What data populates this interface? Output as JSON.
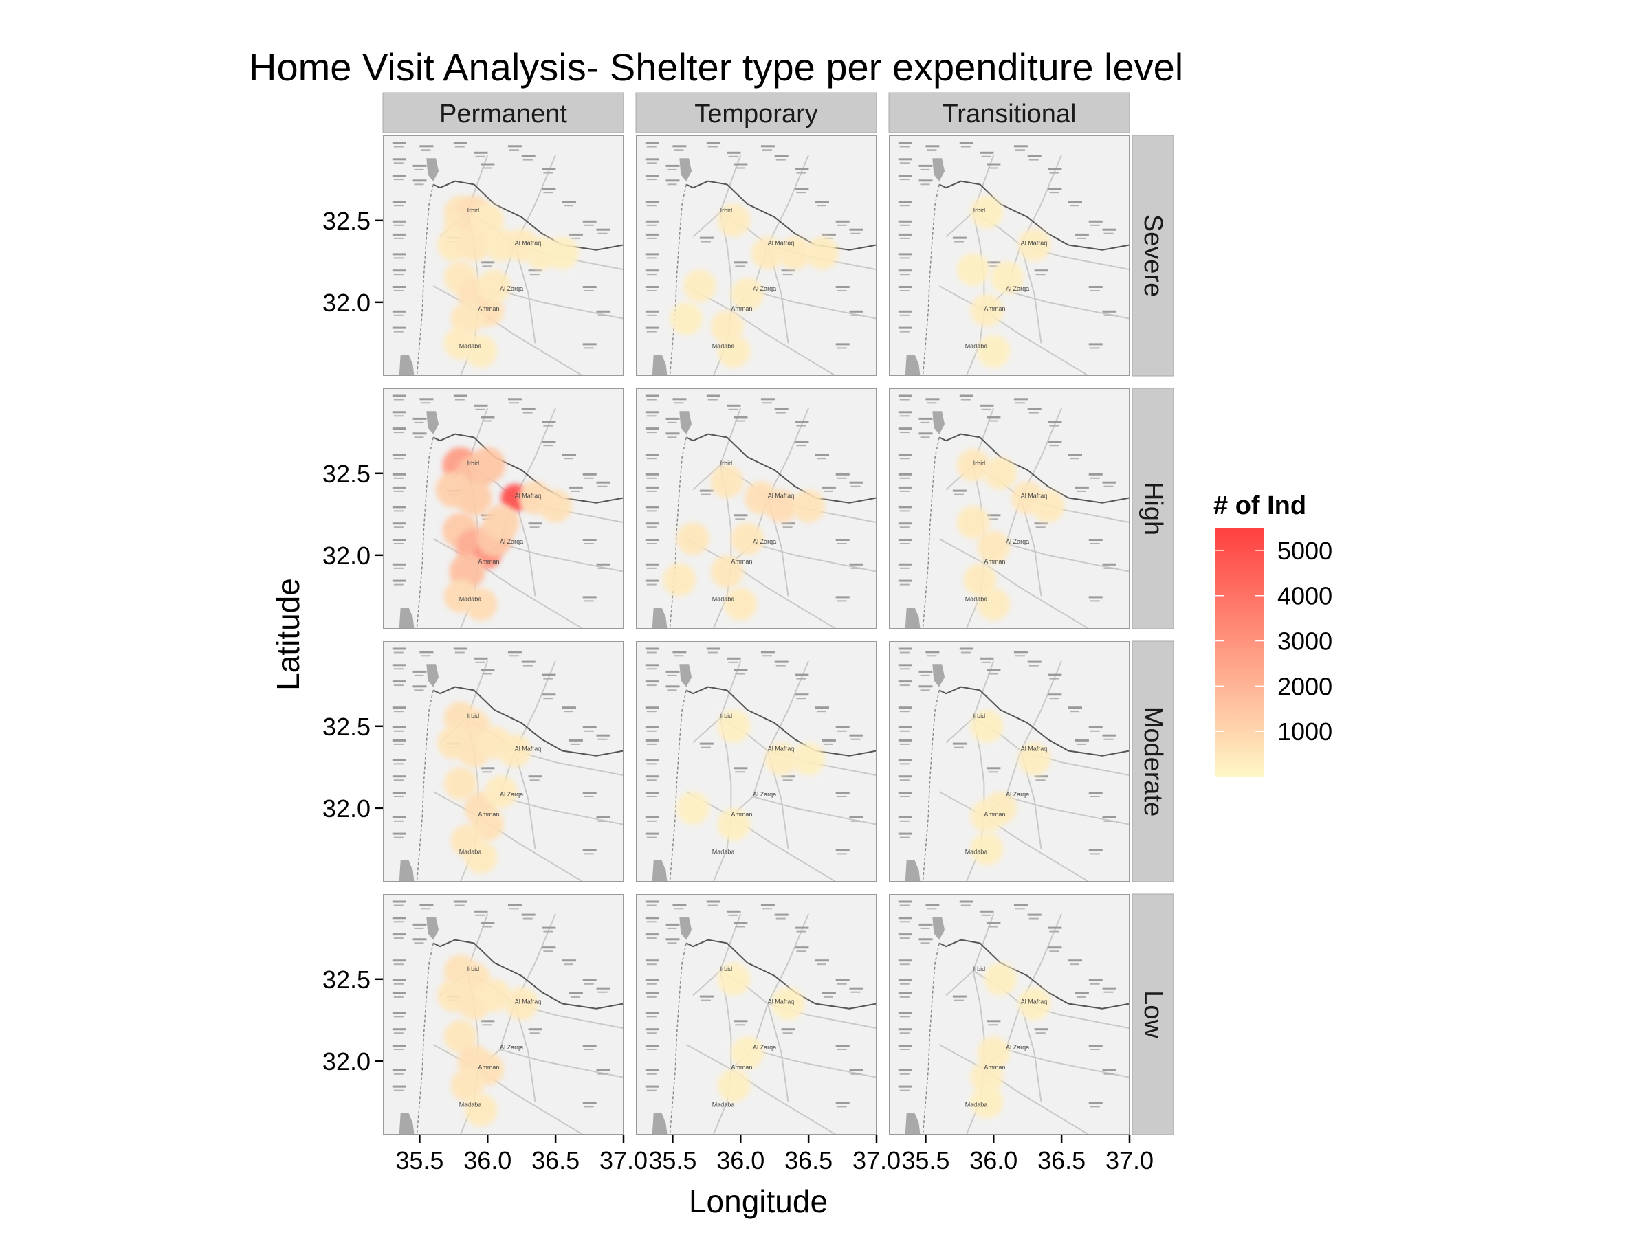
{
  "title": "Home Visit Analysis- Shelter type per expenditure level",
  "columns": [
    "Permanent",
    "Temporary",
    "Transitional"
  ],
  "rows": [
    "Severe",
    "High",
    "Moderate",
    "Low"
  ],
  "axes": {
    "xlabel": "Longitude",
    "ylabel": "Latitude",
    "xlim": [
      35.23,
      37.0
    ],
    "ylim": [
      31.55,
      33.02
    ],
    "x_ticks": [
      35.5,
      36.0,
      36.5,
      37.0
    ],
    "x_tick_labels": [
      "35.5",
      "36.0",
      "36.5",
      "37.0"
    ],
    "y_ticks": [
      32.0,
      32.5
    ],
    "y_tick_labels": [
      "32.0",
      "32.5"
    ]
  },
  "legend": {
    "title": "# of Ind",
    "placement": "right",
    "range": [
      0,
      5500
    ],
    "breaks": [
      1000,
      2000,
      3000,
      4000,
      5000
    ],
    "break_labels": [
      "1000",
      "2000",
      "3000",
      "4000",
      "5000"
    ],
    "color_low": "#fff7c6",
    "color_high": "#ff4040"
  },
  "map_labels": [
    {
      "text": "Amman",
      "lon": 35.93,
      "lat": 31.95
    },
    {
      "text": "Al Zarqa",
      "lon": 36.09,
      "lat": 32.07
    },
    {
      "text": "Al Mafraq",
      "lon": 36.2,
      "lat": 32.35
    },
    {
      "text": "Irbid",
      "lon": 35.85,
      "lat": 32.55
    },
    {
      "text": "Madaba",
      "lon": 35.79,
      "lat": 31.72
    }
  ],
  "colors": {
    "panel_bg": "#f1f1f1",
    "strip_bg": "#cbcbcb",
    "sea": "#a9a9a9",
    "border": "#555555",
    "road": "#c9c9c9"
  },
  "chart_data": {
    "type": "heatmap",
    "description_value": "density of individuals by location",
    "panels": [
      {
        "col": "Permanent",
        "row": "Severe",
        "cells": [
          {
            "lon": 35.8,
            "lat": 32.55,
            "value": 600
          },
          {
            "lon": 35.9,
            "lat": 32.55,
            "value": 800
          },
          {
            "lon": 35.8,
            "lat": 32.45,
            "value": 500
          },
          {
            "lon": 35.9,
            "lat": 32.45,
            "value": 700
          },
          {
            "lon": 35.75,
            "lat": 32.35,
            "value": 400
          },
          {
            "lon": 35.9,
            "lat": 32.35,
            "value": 500
          },
          {
            "lon": 36.0,
            "lat": 32.5,
            "value": 400
          },
          {
            "lon": 36.1,
            "lat": 32.35,
            "value": 350
          },
          {
            "lon": 36.25,
            "lat": 32.35,
            "value": 400
          },
          {
            "lon": 36.4,
            "lat": 32.3,
            "value": 300
          },
          {
            "lon": 36.55,
            "lat": 32.3,
            "value": 250
          },
          {
            "lon": 35.8,
            "lat": 32.15,
            "value": 450
          },
          {
            "lon": 35.9,
            "lat": 32.05,
            "value": 650
          },
          {
            "lon": 36.0,
            "lat": 31.95,
            "value": 700
          },
          {
            "lon": 35.85,
            "lat": 31.9,
            "value": 500
          },
          {
            "lon": 35.8,
            "lat": 31.75,
            "value": 350
          },
          {
            "lon": 35.95,
            "lat": 31.7,
            "value": 300
          },
          {
            "lon": 36.05,
            "lat": 32.1,
            "value": 400
          }
        ]
      },
      {
        "col": "Temporary",
        "row": "Severe",
        "cells": [
          {
            "lon": 35.7,
            "lat": 32.1,
            "value": 300
          },
          {
            "lon": 35.95,
            "lat": 32.5,
            "value": 350
          },
          {
            "lon": 36.2,
            "lat": 32.3,
            "value": 400
          },
          {
            "lon": 36.4,
            "lat": 32.3,
            "value": 400
          },
          {
            "lon": 36.6,
            "lat": 32.3,
            "value": 350
          },
          {
            "lon": 36.05,
            "lat": 32.05,
            "value": 300
          },
          {
            "lon": 35.9,
            "lat": 31.85,
            "value": 350
          },
          {
            "lon": 35.95,
            "lat": 31.7,
            "value": 300
          },
          {
            "lon": 35.6,
            "lat": 31.9,
            "value": 250
          }
        ]
      },
      {
        "col": "Transitional",
        "row": "Severe",
        "cells": [
          {
            "lon": 35.95,
            "lat": 32.55,
            "value": 250
          },
          {
            "lon": 36.3,
            "lat": 32.35,
            "value": 300
          },
          {
            "lon": 35.85,
            "lat": 32.2,
            "value": 250
          },
          {
            "lon": 36.1,
            "lat": 32.15,
            "value": 250
          },
          {
            "lon": 35.95,
            "lat": 31.95,
            "value": 300
          },
          {
            "lon": 36.0,
            "lat": 31.7,
            "value": 250
          }
        ]
      },
      {
        "col": "Permanent",
        "row": "High",
        "cells": [
          {
            "lon": 35.8,
            "lat": 32.55,
            "value": 2800
          },
          {
            "lon": 35.9,
            "lat": 32.5,
            "value": 1800
          },
          {
            "lon": 36.0,
            "lat": 32.55,
            "value": 1500
          },
          {
            "lon": 35.75,
            "lat": 32.4,
            "value": 1200
          },
          {
            "lon": 35.9,
            "lat": 32.35,
            "value": 1300
          },
          {
            "lon": 36.2,
            "lat": 32.35,
            "value": 5200
          },
          {
            "lon": 36.35,
            "lat": 32.35,
            "value": 900
          },
          {
            "lon": 36.5,
            "lat": 32.3,
            "value": 700
          },
          {
            "lon": 35.8,
            "lat": 32.15,
            "value": 1400
          },
          {
            "lon": 35.9,
            "lat": 32.05,
            "value": 2400
          },
          {
            "lon": 36.0,
            "lat": 32.0,
            "value": 3200
          },
          {
            "lon": 35.85,
            "lat": 31.9,
            "value": 1700
          },
          {
            "lon": 36.05,
            "lat": 32.1,
            "value": 1600
          },
          {
            "lon": 35.8,
            "lat": 31.75,
            "value": 900
          },
          {
            "lon": 35.95,
            "lat": 31.7,
            "value": 800
          },
          {
            "lon": 36.1,
            "lat": 32.2,
            "value": 1100
          }
        ]
      },
      {
        "col": "Temporary",
        "row": "High",
        "cells": [
          {
            "lon": 35.65,
            "lat": 32.1,
            "value": 500
          },
          {
            "lon": 35.9,
            "lat": 32.45,
            "value": 500
          },
          {
            "lon": 36.15,
            "lat": 32.35,
            "value": 700
          },
          {
            "lon": 36.3,
            "lat": 32.3,
            "value": 800
          },
          {
            "lon": 36.5,
            "lat": 32.3,
            "value": 600
          },
          {
            "lon": 36.05,
            "lat": 32.1,
            "value": 500
          },
          {
            "lon": 35.9,
            "lat": 31.9,
            "value": 500
          },
          {
            "lon": 36.0,
            "lat": 31.7,
            "value": 400
          },
          {
            "lon": 35.55,
            "lat": 31.85,
            "value": 400
          }
        ]
      },
      {
        "col": "Transitional",
        "row": "High",
        "cells": [
          {
            "lon": 35.85,
            "lat": 32.55,
            "value": 450
          },
          {
            "lon": 36.05,
            "lat": 32.5,
            "value": 400
          },
          {
            "lon": 36.25,
            "lat": 32.35,
            "value": 500
          },
          {
            "lon": 36.4,
            "lat": 32.3,
            "value": 400
          },
          {
            "lon": 35.85,
            "lat": 32.2,
            "value": 400
          },
          {
            "lon": 36.0,
            "lat": 32.05,
            "value": 450
          },
          {
            "lon": 35.9,
            "lat": 31.85,
            "value": 400
          },
          {
            "lon": 36.0,
            "lat": 31.7,
            "value": 350
          }
        ]
      },
      {
        "col": "Permanent",
        "row": "Moderate",
        "cells": [
          {
            "lon": 35.8,
            "lat": 32.55,
            "value": 700
          },
          {
            "lon": 35.9,
            "lat": 32.5,
            "value": 650
          },
          {
            "lon": 35.75,
            "lat": 32.4,
            "value": 550
          },
          {
            "lon": 35.9,
            "lat": 32.35,
            "value": 600
          },
          {
            "lon": 36.05,
            "lat": 32.4,
            "value": 450
          },
          {
            "lon": 36.2,
            "lat": 32.35,
            "value": 400
          },
          {
            "lon": 35.8,
            "lat": 32.15,
            "value": 550
          },
          {
            "lon": 35.95,
            "lat": 32.0,
            "value": 750
          },
          {
            "lon": 36.0,
            "lat": 31.9,
            "value": 650
          },
          {
            "lon": 35.85,
            "lat": 31.8,
            "value": 500
          },
          {
            "lon": 35.95,
            "lat": 31.7,
            "value": 400
          },
          {
            "lon": 36.1,
            "lat": 32.1,
            "value": 350
          }
        ]
      },
      {
        "col": "Temporary",
        "row": "Moderate",
        "cells": [
          {
            "lon": 35.95,
            "lat": 32.5,
            "value": 250
          },
          {
            "lon": 36.3,
            "lat": 32.3,
            "value": 300
          },
          {
            "lon": 36.5,
            "lat": 32.3,
            "value": 250
          },
          {
            "lon": 35.95,
            "lat": 31.9,
            "value": 250
          },
          {
            "lon": 35.65,
            "lat": 32.0,
            "value": 200
          }
        ]
      },
      {
        "col": "Transitional",
        "row": "Moderate",
        "cells": [
          {
            "lon": 35.95,
            "lat": 32.5,
            "value": 250
          },
          {
            "lon": 36.3,
            "lat": 32.3,
            "value": 300
          },
          {
            "lon": 36.05,
            "lat": 32.0,
            "value": 350
          },
          {
            "lon": 35.95,
            "lat": 31.95,
            "value": 300
          },
          {
            "lon": 35.95,
            "lat": 31.75,
            "value": 250
          }
        ]
      },
      {
        "col": "Permanent",
        "row": "Low",
        "cells": [
          {
            "lon": 35.8,
            "lat": 32.55,
            "value": 650
          },
          {
            "lon": 35.9,
            "lat": 32.5,
            "value": 600
          },
          {
            "lon": 35.75,
            "lat": 32.4,
            "value": 500
          },
          {
            "lon": 35.9,
            "lat": 32.35,
            "value": 550
          },
          {
            "lon": 36.05,
            "lat": 32.4,
            "value": 400
          },
          {
            "lon": 36.25,
            "lat": 32.35,
            "value": 400
          },
          {
            "lon": 35.8,
            "lat": 32.15,
            "value": 500
          },
          {
            "lon": 35.9,
            "lat": 32.0,
            "value": 700
          },
          {
            "lon": 36.0,
            "lat": 31.95,
            "value": 650
          },
          {
            "lon": 35.85,
            "lat": 31.85,
            "value": 550
          },
          {
            "lon": 35.95,
            "lat": 31.7,
            "value": 400
          }
        ]
      },
      {
        "col": "Temporary",
        "row": "Low",
        "cells": [
          {
            "lon": 35.95,
            "lat": 32.5,
            "value": 200
          },
          {
            "lon": 36.35,
            "lat": 32.35,
            "value": 250
          },
          {
            "lon": 36.05,
            "lat": 32.05,
            "value": 200
          },
          {
            "lon": 35.95,
            "lat": 31.85,
            "value": 250
          }
        ]
      },
      {
        "col": "Transitional",
        "row": "Low",
        "cells": [
          {
            "lon": 36.05,
            "lat": 32.5,
            "value": 250
          },
          {
            "lon": 36.3,
            "lat": 32.35,
            "value": 250
          },
          {
            "lon": 36.0,
            "lat": 32.05,
            "value": 300
          },
          {
            "lon": 35.95,
            "lat": 31.9,
            "value": 300
          },
          {
            "lon": 35.95,
            "lat": 31.75,
            "value": 250
          }
        ]
      }
    ]
  }
}
